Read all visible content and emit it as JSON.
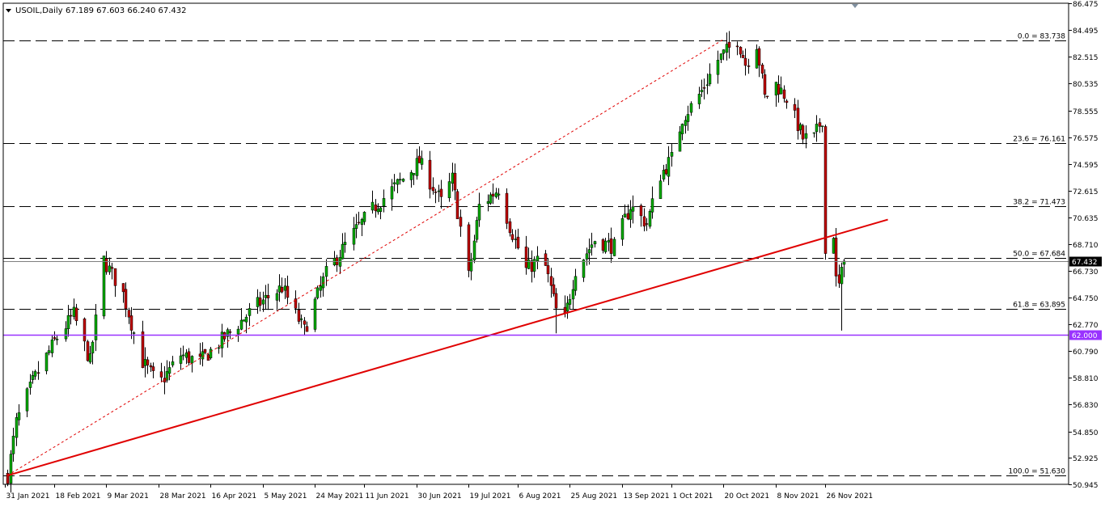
{
  "header": {
    "symbol": "USOIL,Daily",
    "ohlc": "67.189 67.603 66.240 67.432",
    "menu_icon": "triangle-down-icon"
  },
  "chart_data": {
    "type": "candlestick",
    "symbol": "USOIL",
    "timeframe": "Daily",
    "ylim": [
      50.945,
      86.475
    ],
    "y_ticks": [
      "86.475",
      "84.495",
      "82.515",
      "80.535",
      "78.555",
      "76.575",
      "74.595",
      "72.615",
      "70.635",
      "68.710",
      "66.730",
      "64.750",
      "62.770",
      "60.790",
      "58.810",
      "56.830",
      "54.850",
      "52.925",
      "50.945"
    ],
    "x_ticks": [
      "31 Jan 2021",
      "18 Feb 2021",
      "9 Mar 2021",
      "28 Mar 2021",
      "16 Apr 2021",
      "5 May 2021",
      "24 May 2021",
      "11 Jun 2021",
      "30 Jun 2021",
      "19 Jul 2021",
      "6 Aug 2021",
      "25 Aug 2021",
      "13 Sep 2021",
      "1 Oct 2021",
      "20 Oct 2021",
      "8 Nov 2021",
      "26 Nov 2021"
    ],
    "current_price": {
      "value": 67.432,
      "label": "67.432"
    },
    "horizontal_line": {
      "value": 62.0,
      "label": "62.000",
      "color": "#9933ff"
    },
    "fibonacci": {
      "high": 83.738,
      "low": 51.63,
      "color": "#000000",
      "levels": [
        {
          "label": "0.0 = 83.738",
          "value": 83.738
        },
        {
          "label": "23.6 = 76.161",
          "value": 76.161
        },
        {
          "label": "38.2 = 71.473",
          "value": 71.473
        },
        {
          "label": "50.0 = 67.684",
          "value": 67.684
        },
        {
          "label": "61.8 = 63.895",
          "value": 63.895
        },
        {
          "label": "100.0 = 51.630",
          "value": 51.63
        }
      ]
    },
    "trendlines": [
      {
        "name": "support trendline",
        "style": "solid",
        "color": "#e00000",
        "from": {
          "date": "2021-02-01",
          "price": 51.6
        },
        "to": {
          "date": "2021-12-19",
          "price": 70.5
        }
      },
      {
        "name": "fibonacci baseline",
        "style": "dotted",
        "color": "#e00000",
        "from": {
          "date": "2021-02-01",
          "price": 51.6
        },
        "to": {
          "date": "2021-10-20",
          "price": 83.8
        }
      }
    ],
    "waypoints": [
      [
        "2021-02-01",
        51.6
      ],
      [
        "2021-02-04",
        55.5
      ],
      [
        "2021-02-10",
        58.5
      ],
      [
        "2021-02-18",
        61.5
      ],
      [
        "2021-02-25",
        63.5
      ],
      [
        "2021-03-03",
        60.0
      ],
      [
        "2021-03-08",
        67.5
      ],
      [
        "2021-03-15",
        65.0
      ],
      [
        "2021-03-22",
        60.0
      ],
      [
        "2021-03-28",
        58.3
      ],
      [
        "2021-04-05",
        60.5
      ],
      [
        "2021-04-12",
        60.0
      ],
      [
        "2021-04-22",
        62.0
      ],
      [
        "2021-05-03",
        64.2
      ],
      [
        "2021-05-12",
        65.5
      ],
      [
        "2021-05-20",
        62.3
      ],
      [
        "2021-05-28",
        66.5
      ],
      [
        "2021-06-07",
        69.5
      ],
      [
        "2021-06-15",
        71.5
      ],
      [
        "2021-06-25",
        73.5
      ],
      [
        "2021-07-01",
        74.8
      ],
      [
        "2021-07-09",
        71.8
      ],
      [
        "2021-07-13",
        73.5
      ],
      [
        "2021-07-19",
        66.3
      ],
      [
        "2021-07-23",
        71.5
      ],
      [
        "2021-07-30",
        72.8
      ],
      [
        "2021-08-03",
        70.0
      ],
      [
        "2021-08-09",
        66.8
      ],
      [
        "2021-08-15",
        67.8
      ],
      [
        "2021-08-22",
        62.2
      ],
      [
        "2021-08-27",
        66.8
      ],
      [
        "2021-09-03",
        69.0
      ],
      [
        "2021-09-10",
        68.5
      ],
      [
        "2021-09-16",
        71.5
      ],
      [
        "2021-09-22",
        70.2
      ],
      [
        "2021-09-27",
        73.8
      ],
      [
        "2021-10-01",
        75.0
      ],
      [
        "2021-10-05",
        78.0
      ],
      [
        "2021-10-12",
        80.0
      ],
      [
        "2021-10-18",
        82.3
      ],
      [
        "2021-10-25",
        83.8
      ],
      [
        "2021-10-28",
        82.0
      ],
      [
        "2021-11-01",
        83.5
      ],
      [
        "2021-11-04",
        79.5
      ],
      [
        "2021-11-08",
        80.5
      ],
      [
        "2021-11-12",
        79.5
      ],
      [
        "2021-11-18",
        76.5
      ],
      [
        "2021-11-22",
        76.5
      ],
      [
        "2021-11-25",
        78.0
      ],
      [
        "2021-11-26",
        68.0
      ],
      [
        "2021-11-29",
        69.5
      ],
      [
        "2021-11-30",
        66.0
      ],
      [
        "2021-12-01",
        65.6
      ],
      [
        "2021-12-02",
        66.5
      ],
      [
        "2021-12-03",
        67.43
      ]
    ],
    "colors": {
      "bull": "#00aa00",
      "bear": "#c00000",
      "wick": "#000000",
      "trend": "#e00000",
      "hline": "#9933ff",
      "price_tag_bg": "#000000",
      "price_tag_text": "#ffffff"
    },
    "grid": false
  }
}
